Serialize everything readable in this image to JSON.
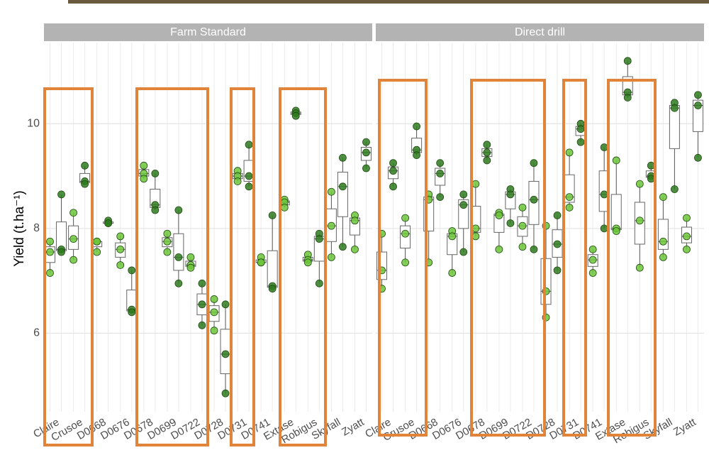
{
  "chart_data": {
    "type": "box-dot",
    "ylabel": "Yield (t.ha⁻¹)",
    "categories": [
      "Claire",
      "Crusoe",
      "D0668",
      "D0676",
      "D0678",
      "D0699",
      "D0722",
      "D0728",
      "D0731",
      "D0741",
      "Extase",
      "Robigus",
      "Skyfall",
      "Zyatt"
    ],
    "ylim": [
      4.5,
      11.55
    ],
    "yticks": [
      6,
      8,
      10
    ],
    "grid": true,
    "facets": [
      {
        "title": "Farm Standard",
        "series": [
          {
            "color": "#6cc53a",
            "values": [
              [
                7.75,
                7.55,
                7.15
              ],
              [
                8.3,
                7.8,
                7.4
              ],
              [
                7.75,
                7.75,
                7.55
              ],
              [
                7.85,
                7.6,
                7.3
              ],
              [
                9.2,
                9.05,
                8.95
              ],
              [
                7.9,
                7.75,
                7.55
              ],
              [
                7.45,
                7.3,
                7.25
              ],
              [
                6.65,
                6.4,
                6.05
              ],
              [
                9.1,
                9.0,
                8.9
              ],
              [
                7.45,
                7.35,
                7.35
              ],
              [
                8.55,
                8.5,
                8.4
              ],
              [
                7.5,
                7.4,
                7.35
              ],
              [
                8.7,
                8.05,
                7.45
              ],
              [
                8.25,
                8.15,
                7.6
              ]
            ]
          },
          {
            "color": "#2f7a1f",
            "values": [
              [
                8.65,
                7.6,
                7.55
              ],
              [
                9.2,
                8.9,
                8.85
              ],
              [
                8.15,
                8.1,
                8.1
              ],
              [
                7.2,
                6.45,
                6.4
              ],
              [
                9.05,
                8.45,
                8.35
              ],
              [
                8.35,
                7.45,
                6.95
              ],
              [
                6.95,
                6.55,
                6.15
              ],
              [
                6.55,
                5.6,
                4.85
              ],
              [
                9.6,
                9.0,
                8.8
              ],
              [
                8.25,
                6.9,
                6.85
              ],
              [
                10.25,
                10.2,
                10.15
              ],
              [
                7.9,
                7.8,
                6.95
              ],
              [
                9.35,
                8.8,
                7.65
              ],
              [
                9.65,
                9.45,
                9.15
              ]
            ]
          }
        ]
      },
      {
        "title": "Direct drill",
        "series": [
          {
            "color": "#6cc53a",
            "values": [
              [
                7.9,
                7.2,
                6.85
              ],
              [
                8.2,
                7.9,
                7.35
              ],
              [
                8.65,
                8.55,
                7.35
              ],
              [
                7.95,
                7.85,
                7.15
              ],
              [
                8.85,
                8.0,
                7.85
              ],
              [
                8.3,
                8.25,
                7.6
              ],
              [
                8.4,
                8.05,
                7.65
              ],
              [
                8.05,
                6.8,
                6.3
              ],
              [
                9.45,
                8.6,
                8.4
              ],
              [
                7.6,
                7.4,
                7.15
              ],
              [
                9.3,
                8.0,
                7.95
              ],
              [
                8.85,
                8.15,
                7.25
              ],
              [
                8.6,
                7.75,
                7.45
              ],
              [
                8.2,
                7.85,
                7.6
              ]
            ]
          },
          {
            "color": "#2f7a1f",
            "values": [
              [
                9.25,
                9.1,
                8.8
              ],
              [
                9.95,
                9.5,
                9.4
              ],
              [
                9.25,
                9.05,
                8.6
              ],
              [
                8.65,
                8.45,
                7.55
              ],
              [
                9.6,
                9.45,
                9.3
              ],
              [
                8.75,
                8.65,
                8.1
              ],
              [
                9.25,
                8.55,
                7.6
              ],
              [
                8.25,
                7.7,
                7.2
              ],
              [
                10.0,
                9.9,
                9.65
              ],
              [
                9.55,
                8.65,
                8.0
              ],
              [
                11.2,
                10.6,
                10.5
              ],
              [
                9.2,
                9.0,
                8.95
              ],
              [
                10.4,
                10.3,
                8.75
              ],
              [
                10.55,
                10.35,
                9.35
              ]
            ]
          }
        ]
      }
    ]
  }
}
